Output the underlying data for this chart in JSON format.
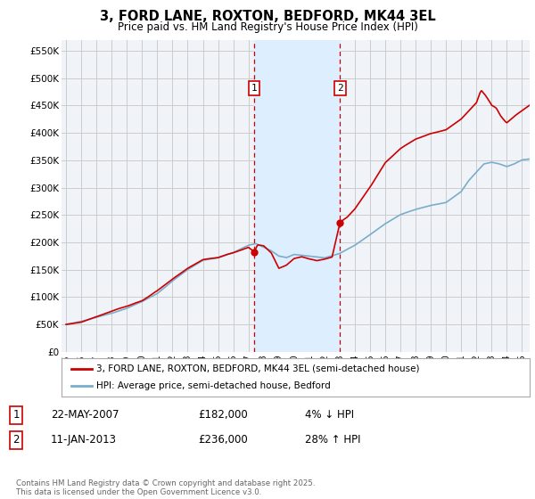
{
  "title": "3, FORD LANE, ROXTON, BEDFORD, MK44 3EL",
  "subtitle": "Price paid vs. HM Land Registry's House Price Index (HPI)",
  "ylabel_ticks": [
    "£0",
    "£50K",
    "£100K",
    "£150K",
    "£200K",
    "£250K",
    "£300K",
    "£350K",
    "£400K",
    "£450K",
    "£500K",
    "£550K"
  ],
  "ytick_values": [
    0,
    50000,
    100000,
    150000,
    200000,
    250000,
    300000,
    350000,
    400000,
    450000,
    500000,
    550000
  ],
  "ylim": [
    0,
    570000
  ],
  "xlim_start": 1994.7,
  "xlim_end": 2025.5,
  "sale1_year": 2007.38,
  "sale1_price": 182000,
  "sale1_label": "1",
  "sale1_date": "22-MAY-2007",
  "sale1_text": "£182,000",
  "sale1_hpi": "4% ↓ HPI",
  "sale2_year": 2013.03,
  "sale2_price": 236000,
  "sale2_label": "2",
  "sale2_date": "11-JAN-2013",
  "sale2_text": "£236,000",
  "sale2_hpi": "28% ↑ HPI",
  "legend_line1": "3, FORD LANE, ROXTON, BEDFORD, MK44 3EL (semi-detached house)",
  "legend_line2": "HPI: Average price, semi-detached house, Bedford",
  "footer": "Contains HM Land Registry data © Crown copyright and database right 2025.\nThis data is licensed under the Open Government Licence v3.0.",
  "line_color_red": "#cc0000",
  "line_color_blue": "#7aadcc",
  "shade_color": "#ddeeff",
  "grid_color": "#cccccc",
  "background_color": "#ffffff",
  "plot_bg_color": "#f0f4f8"
}
